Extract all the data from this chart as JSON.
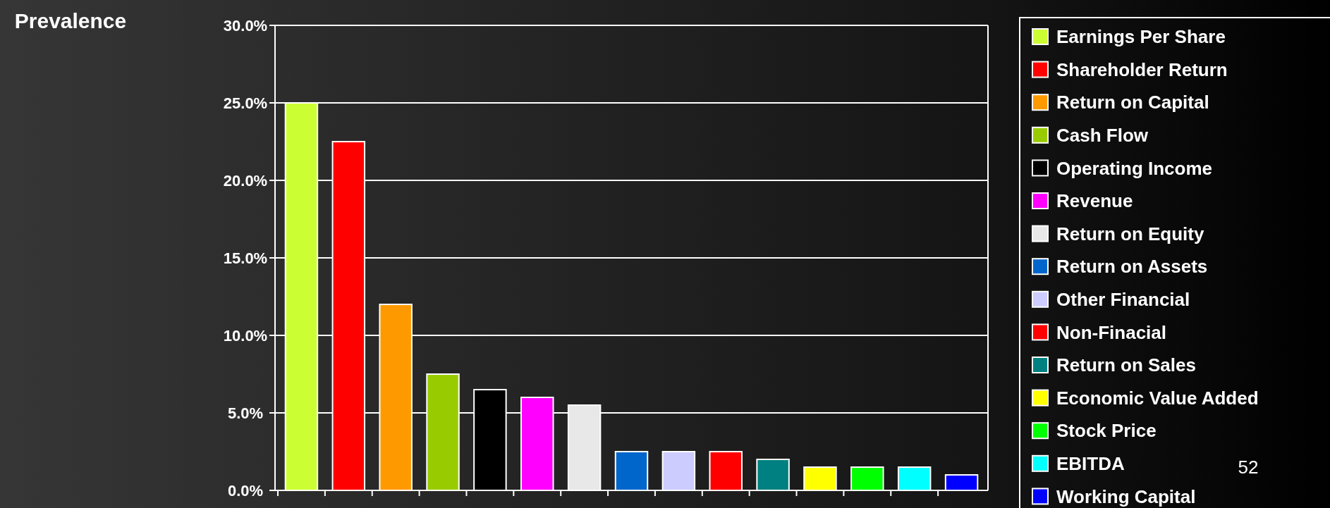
{
  "chart_data": {
    "type": "bar",
    "ylabel": "Prevalence",
    "categories": [
      null,
      null,
      null,
      null,
      null,
      null,
      null,
      null,
      null,
      null,
      null,
      null,
      null,
      null,
      null
    ],
    "stacked": true,
    "ylim": [
      0,
      30
    ],
    "yticks": [
      {
        "value": 0,
        "label": "0.0%"
      },
      {
        "value": 5,
        "label": "5.0%"
      },
      {
        "value": 10,
        "label": "10.0%"
      },
      {
        "value": 15,
        "label": "15.0%"
      },
      {
        "value": 20,
        "label": "20.0%"
      },
      {
        "value": 25,
        "label": "25.0%"
      },
      {
        "value": 30,
        "label": "30.0%"
      }
    ],
    "grid": "y",
    "legend": "right",
    "annotations": [
      "52"
    ],
    "series": [
      {
        "name": "Earnings Per Share",
        "color": "#ccff33",
        "values": [
          25,
          null,
          null,
          null,
          null,
          null,
          null,
          null,
          null,
          null,
          null,
          null,
          null,
          null,
          null
        ]
      },
      {
        "name": "Shareholder Return",
        "color": "#ff0000",
        "values": [
          null,
          22.5,
          null,
          null,
          null,
          null,
          null,
          null,
          null,
          null,
          null,
          null,
          null,
          null,
          null
        ]
      },
      {
        "name": "Return on Capital",
        "color": "#ff9900",
        "values": [
          null,
          null,
          12,
          null,
          null,
          null,
          null,
          null,
          null,
          null,
          null,
          null,
          null,
          null,
          null
        ]
      },
      {
        "name": "Cash Flow",
        "color": "#99cc00",
        "values": [
          null,
          null,
          null,
          7.5,
          null,
          null,
          null,
          null,
          null,
          null,
          null,
          null,
          null,
          null,
          null
        ]
      },
      {
        "name": "Operating Income",
        "color": "#000000",
        "values": [
          null,
          null,
          null,
          null,
          6.5,
          null,
          null,
          null,
          null,
          null,
          null,
          null,
          null,
          null,
          null
        ]
      },
      {
        "name": "Revenue",
        "color": "#ff00ff",
        "values": [
          null,
          null,
          null,
          null,
          null,
          6,
          null,
          null,
          null,
          null,
          null,
          null,
          null,
          null,
          null
        ]
      },
      {
        "name": "Return on Equity",
        "color": "#e8e8e8",
        "values": [
          null,
          null,
          null,
          null,
          null,
          null,
          5.5,
          null,
          null,
          null,
          null,
          null,
          null,
          null,
          null
        ]
      },
      {
        "name": "Return on Assets",
        "color": "#0066cc",
        "values": [
          null,
          null,
          null,
          null,
          null,
          null,
          null,
          2.5,
          null,
          null,
          null,
          null,
          null,
          null,
          null
        ]
      },
      {
        "name": "Other Financial",
        "color": "#ccccff",
        "values": [
          null,
          null,
          null,
          null,
          null,
          null,
          null,
          null,
          2.5,
          null,
          null,
          null,
          null,
          null,
          null
        ]
      },
      {
        "name": "Non-Finacial",
        "color": "#ff0000",
        "values": [
          null,
          null,
          null,
          null,
          null,
          null,
          null,
          null,
          null,
          2.5,
          null,
          null,
          null,
          null,
          null
        ]
      },
      {
        "name": "Return on Sales",
        "color": "#008080",
        "values": [
          null,
          null,
          null,
          null,
          null,
          null,
          null,
          null,
          null,
          null,
          2,
          null,
          null,
          null,
          null
        ]
      },
      {
        "name": "Economic Value Added",
        "color": "#ffff00",
        "values": [
          null,
          null,
          null,
          null,
          null,
          null,
          null,
          null,
          null,
          null,
          null,
          1.5,
          null,
          null,
          null
        ]
      },
      {
        "name": "Stock Price",
        "color": "#00ff00",
        "values": [
          null,
          null,
          null,
          null,
          null,
          null,
          null,
          null,
          null,
          null,
          null,
          null,
          1.5,
          null,
          null
        ]
      },
      {
        "name": "EBITDA",
        "color": "#00ffff",
        "values": [
          null,
          null,
          null,
          null,
          null,
          null,
          null,
          null,
          null,
          null,
          null,
          null,
          null,
          1.5,
          null
        ]
      },
      {
        "name": "Working Capital",
        "color": "#0000ff",
        "values": [
          null,
          null,
          null,
          null,
          null,
          null,
          null,
          null,
          null,
          null,
          null,
          null,
          null,
          null,
          1
        ]
      }
    ]
  }
}
